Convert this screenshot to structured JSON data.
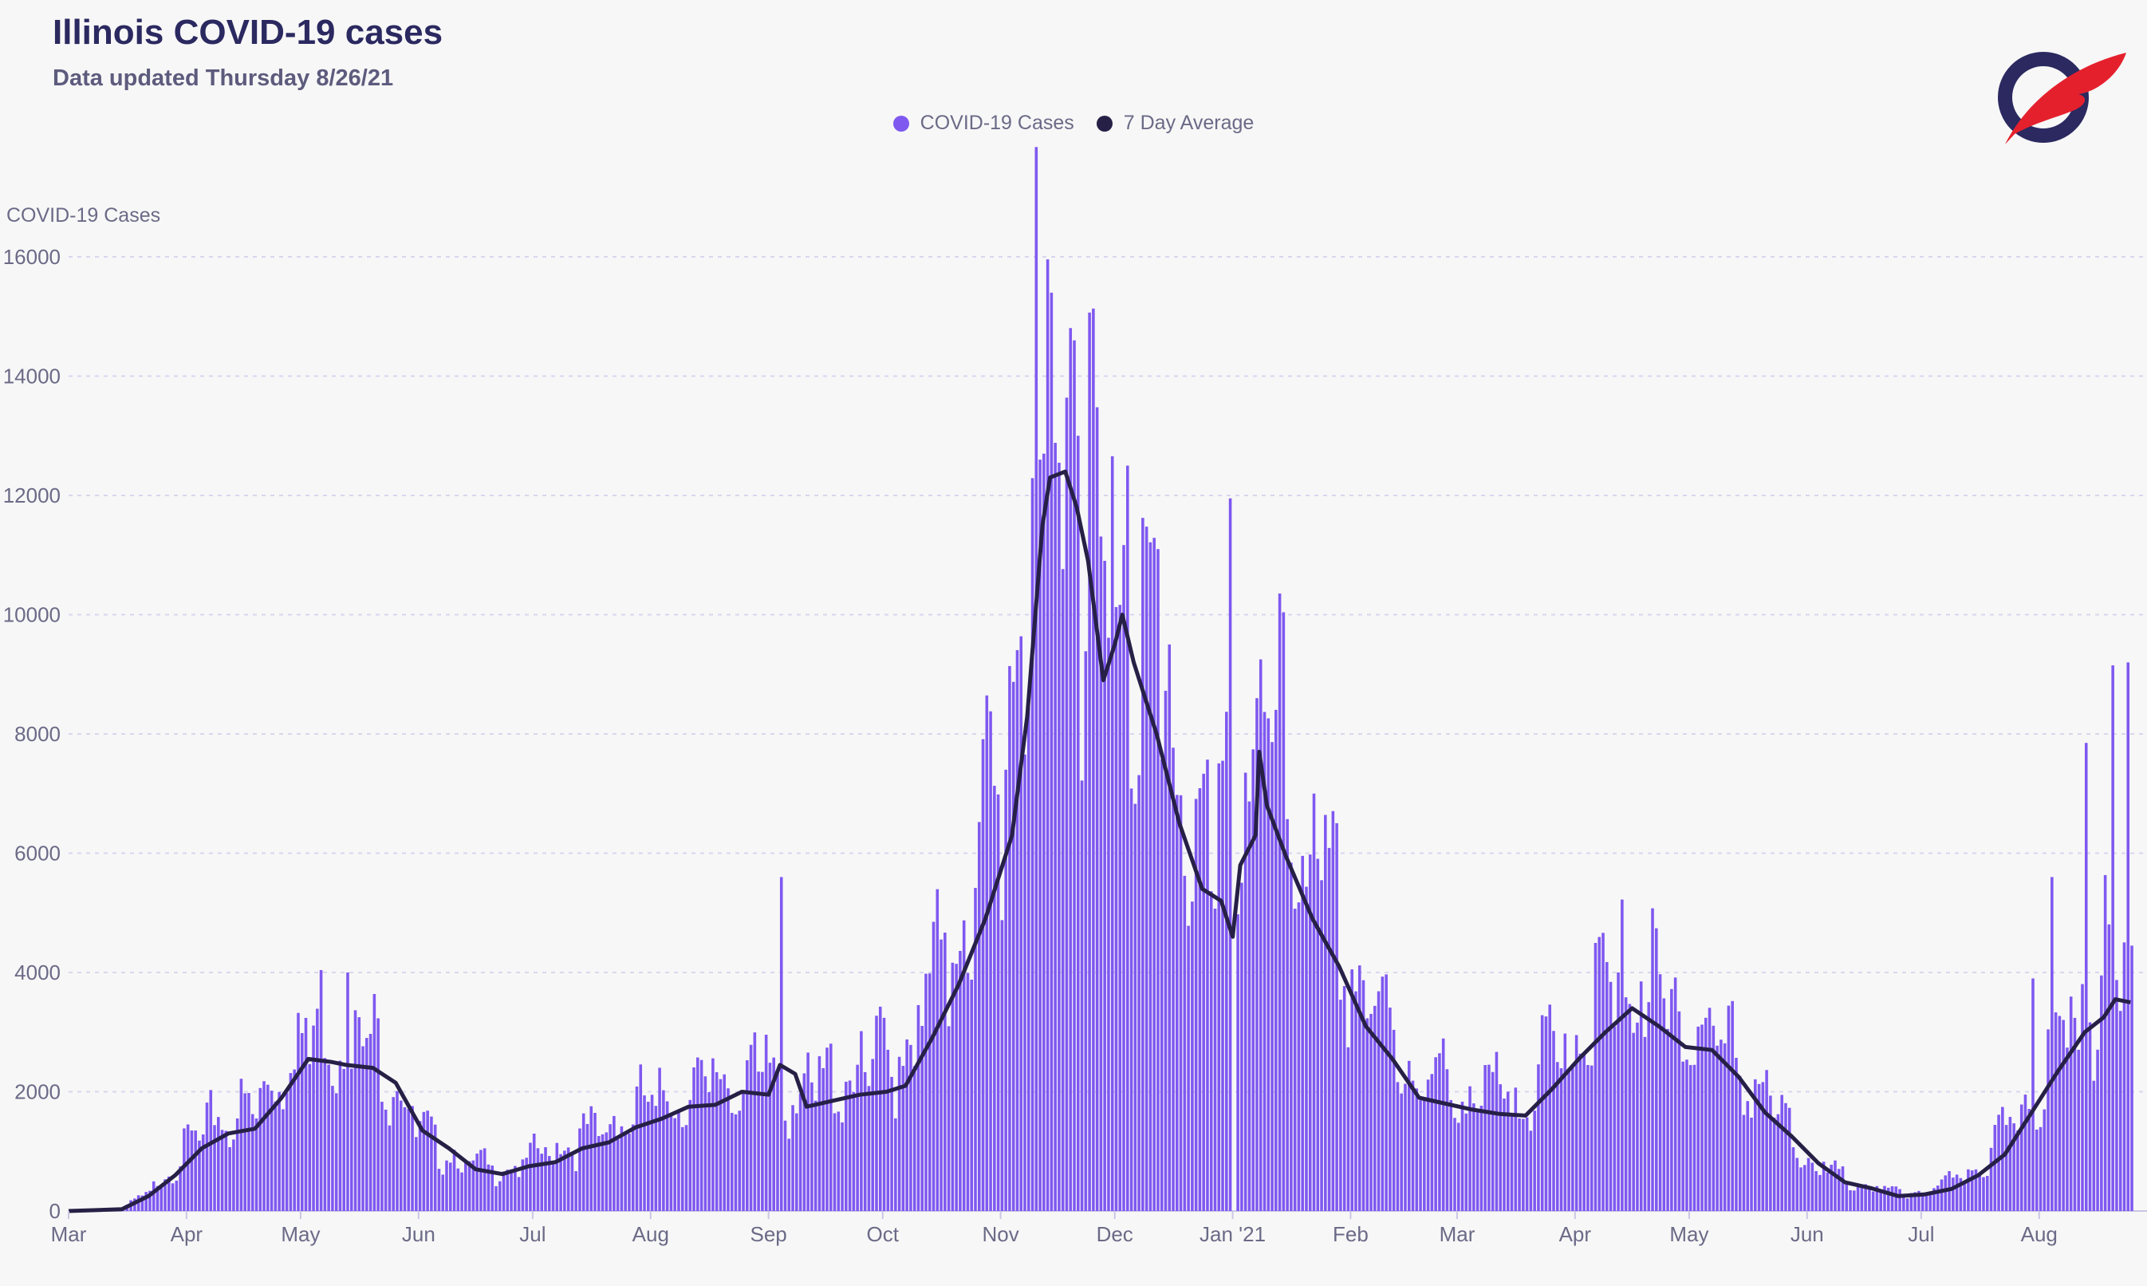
{
  "header": {
    "title": "Illinois COVID-19 cases",
    "subtitle": "Data updated Thursday 8/26/21"
  },
  "logo": {
    "icon": "quill-o-logo-icon",
    "colors": [
      "#2b2960",
      "#e5202d"
    ]
  },
  "legend": {
    "items": [
      {
        "label": "COVID-19 Cases",
        "color": "#7f58f0"
      },
      {
        "label": "7 Day Average",
        "color": "#262046"
      }
    ]
  },
  "chart_data": {
    "type": "bar",
    "ylabel": "COVID-19 Cases",
    "xlabel": "",
    "ylim": [
      0,
      16000
    ],
    "yticks": [
      "0",
      "2000",
      "4000",
      "6000",
      "8000",
      "10000",
      "12000",
      "14000",
      "16000"
    ],
    "grid": "horizontal dashed",
    "legend_position": "top-center",
    "x_range": [
      "2020-03-01",
      "2021-08-25"
    ],
    "month_ticks": [
      {
        "label": "Mar",
        "date": "2020-03-01"
      },
      {
        "label": "Apr",
        "date": "2020-04-01"
      },
      {
        "label": "May",
        "date": "2020-05-01"
      },
      {
        "label": "Jun",
        "date": "2020-06-01"
      },
      {
        "label": "Jul",
        "date": "2020-07-01"
      },
      {
        "label": "Aug",
        "date": "2020-08-01"
      },
      {
        "label": "Sep",
        "date": "2020-09-01"
      },
      {
        "label": "Oct",
        "date": "2020-10-01"
      },
      {
        "label": "Nov",
        "date": "2020-11-01"
      },
      {
        "label": "Dec",
        "date": "2020-12-01"
      },
      {
        "label": "Jan '21",
        "date": "2021-01-01"
      },
      {
        "label": "Feb",
        "date": "2021-02-01"
      },
      {
        "label": "Mar",
        "date": "2021-03-01"
      },
      {
        "label": "Apr",
        "date": "2021-04-01"
      },
      {
        "label": "May",
        "date": "2021-05-01"
      },
      {
        "label": "Jun",
        "date": "2021-06-01"
      },
      {
        "label": "Jul",
        "date": "2021-07-01"
      },
      {
        "label": "Aug",
        "date": "2021-08-01"
      }
    ],
    "series": [
      {
        "name": "COVID-19 Cases",
        "kind": "bar",
        "note": "daily new cases, one bar per day; values estimated from gridlines at anchor dates, interpolated between",
        "anchors": [
          [
            "2020-03-01",
            0
          ],
          [
            "2020-03-14",
            20
          ],
          [
            "2020-03-20",
            200
          ],
          [
            "2020-03-25",
            450
          ],
          [
            "2020-04-01",
            900
          ],
          [
            "2020-04-08",
            1300
          ],
          [
            "2020-04-15",
            1350
          ],
          [
            "2020-04-22",
            1700
          ],
          [
            "2020-04-29",
            2400
          ],
          [
            "2020-05-05",
            2600
          ],
          [
            "2020-05-12",
            2500
          ],
          [
            "2020-05-19",
            2300
          ],
          [
            "2020-05-25",
            2000
          ],
          [
            "2020-06-01",
            1100
          ],
          [
            "2020-06-08",
            850
          ],
          [
            "2020-06-15",
            650
          ],
          [
            "2020-06-22",
            600
          ],
          [
            "2020-06-29",
            700
          ],
          [
            "2020-07-06",
            900
          ],
          [
            "2020-07-13",
            1000
          ],
          [
            "2020-07-20",
            1200
          ],
          [
            "2020-07-27",
            1400
          ],
          [
            "2020-08-03",
            1600
          ],
          [
            "2020-08-10",
            1700
          ],
          [
            "2020-08-17",
            1800
          ],
          [
            "2020-08-24",
            1900
          ],
          [
            "2020-08-31",
            2000
          ],
          [
            "2020-09-06",
            1700
          ],
          [
            "2020-09-13",
            1750
          ],
          [
            "2020-09-20",
            1900
          ],
          [
            "2020-09-27",
            2000
          ],
          [
            "2020-10-04",
            2200
          ],
          [
            "2020-10-11",
            2800
          ],
          [
            "2020-10-18",
            3700
          ],
          [
            "2020-10-25",
            4700
          ],
          [
            "2020-11-01",
            6300
          ],
          [
            "2020-11-08",
            9800
          ],
          [
            "2020-11-13",
            12200
          ],
          [
            "2020-11-17",
            12000
          ],
          [
            "2020-11-21",
            11000
          ],
          [
            "2020-11-27",
            8900
          ],
          [
            "2020-12-01",
            9400
          ],
          [
            "2020-12-06",
            8700
          ],
          [
            "2020-12-13",
            7100
          ],
          [
            "2020-12-20",
            5700
          ],
          [
            "2020-12-27",
            4800
          ],
          [
            "2021-01-03",
            6200
          ],
          [
            "2021-01-08",
            6900
          ],
          [
            "2021-01-15",
            5900
          ],
          [
            "2021-01-22",
            4900
          ],
          [
            "2021-01-29",
            3800
          ],
          [
            "2021-02-05",
            3000
          ],
          [
            "2021-02-12",
            2400
          ],
          [
            "2021-02-19",
            1900
          ],
          [
            "2021-02-26",
            1750
          ],
          [
            "2021-03-05",
            1650
          ],
          [
            "2021-03-12",
            1600
          ],
          [
            "2021-03-19",
            1700
          ],
          [
            "2021-03-26",
            2200
          ],
          [
            "2021-04-02",
            2600
          ],
          [
            "2021-04-09",
            3100
          ],
          [
            "2021-04-16",
            3350
          ],
          [
            "2021-04-23",
            2900
          ],
          [
            "2021-04-30",
            2700
          ],
          [
            "2021-05-07",
            2550
          ],
          [
            "2021-05-14",
            2100
          ],
          [
            "2021-05-21",
            1600
          ],
          [
            "2021-05-28",
            1000
          ],
          [
            "2021-06-04",
            650
          ],
          [
            "2021-06-11",
            420
          ],
          [
            "2021-06-18",
            330
          ],
          [
            "2021-06-25",
            250
          ],
          [
            "2021-07-02",
            280
          ],
          [
            "2021-07-09",
            420
          ],
          [
            "2021-07-16",
            650
          ],
          [
            "2021-07-23",
            1100
          ],
          [
            "2021-07-30",
            1700
          ],
          [
            "2021-08-06",
            2400
          ],
          [
            "2021-08-13",
            3100
          ],
          [
            "2021-08-20",
            3350
          ],
          [
            "2021-08-25",
            3500
          ]
        ],
        "spikes": [
          [
            "2020-05-13",
            4000
          ],
          [
            "2020-05-16",
            3250
          ],
          [
            "2020-09-04",
            5600
          ],
          [
            "2020-11-14",
            15400
          ],
          [
            "2020-11-20",
            14600
          ],
          [
            "2020-11-21",
            13000
          ],
          [
            "2020-11-12",
            12700
          ],
          [
            "2020-11-11",
            12600
          ],
          [
            "2020-12-04",
            12500
          ],
          [
            "2020-12-12",
            11100
          ],
          [
            "2020-12-31",
            11950
          ],
          [
            "2021-01-01",
            0
          ],
          [
            "2021-01-08",
            9250
          ],
          [
            "2021-01-07",
            8600
          ],
          [
            "2021-01-22",
            7000
          ],
          [
            "2021-04-12",
            4000
          ],
          [
            "2021-04-18",
            3850
          ],
          [
            "2021-08-04",
            5600
          ],
          [
            "2021-08-13",
            7850
          ],
          [
            "2021-08-20",
            9150
          ],
          [
            "2021-08-24",
            9200
          ],
          [
            "2021-08-25",
            4450
          ],
          [
            "2021-07-30",
            3900
          ],
          [
            "2021-08-17",
            3950
          ]
        ]
      },
      {
        "name": "7 Day Average",
        "kind": "line",
        "points": [
          [
            "2020-03-01",
            0
          ],
          [
            "2020-03-15",
            30
          ],
          [
            "2020-03-22",
            250
          ],
          [
            "2020-03-29",
            600
          ],
          [
            "2020-04-05",
            1050
          ],
          [
            "2020-04-12",
            1300
          ],
          [
            "2020-04-19",
            1380
          ],
          [
            "2020-04-26",
            1900
          ],
          [
            "2020-05-03",
            2550
          ],
          [
            "2020-05-09",
            2500
          ],
          [
            "2020-05-13",
            2450
          ],
          [
            "2020-05-20",
            2400
          ],
          [
            "2020-05-26",
            2150
          ],
          [
            "2020-06-02",
            1350
          ],
          [
            "2020-06-09",
            1050
          ],
          [
            "2020-06-16",
            700
          ],
          [
            "2020-06-23",
            620
          ],
          [
            "2020-06-30",
            750
          ],
          [
            "2020-07-07",
            820
          ],
          [
            "2020-07-14",
            1050
          ],
          [
            "2020-07-21",
            1150
          ],
          [
            "2020-07-28",
            1400
          ],
          [
            "2020-08-04",
            1550
          ],
          [
            "2020-08-11",
            1750
          ],
          [
            "2020-08-18",
            1780
          ],
          [
            "2020-08-25",
            2000
          ],
          [
            "2020-09-01",
            1950
          ],
          [
            "2020-09-04",
            2450
          ],
          [
            "2020-09-08",
            2300
          ],
          [
            "2020-09-11",
            1750
          ],
          [
            "2020-09-18",
            1850
          ],
          [
            "2020-09-25",
            1950
          ],
          [
            "2020-10-02",
            2000
          ],
          [
            "2020-10-07",
            2100
          ],
          [
            "2020-10-14",
            2900
          ],
          [
            "2020-10-21",
            3800
          ],
          [
            "2020-10-28",
            4900
          ],
          [
            "2020-11-04",
            6300
          ],
          [
            "2020-11-08",
            8300
          ],
          [
            "2020-11-12",
            11500
          ],
          [
            "2020-11-14",
            12300
          ],
          [
            "2020-11-18",
            12400
          ],
          [
            "2020-11-21",
            11800
          ],
          [
            "2020-11-24",
            10900
          ],
          [
            "2020-11-28",
            8900
          ],
          [
            "2020-12-01",
            9500
          ],
          [
            "2020-12-03",
            10000
          ],
          [
            "2020-12-06",
            9200
          ],
          [
            "2020-12-12",
            8000
          ],
          [
            "2020-12-18",
            6500
          ],
          [
            "2020-12-24",
            5400
          ],
          [
            "2020-12-29",
            5200
          ],
          [
            "2021-01-01",
            4600
          ],
          [
            "2021-01-03",
            5800
          ],
          [
            "2021-01-07",
            6300
          ],
          [
            "2021-01-08",
            7700
          ],
          [
            "2021-01-10",
            6800
          ],
          [
            "2021-01-15",
            5950
          ],
          [
            "2021-01-22",
            4900
          ],
          [
            "2021-01-29",
            4100
          ],
          [
            "2021-02-05",
            3100
          ],
          [
            "2021-02-12",
            2550
          ],
          [
            "2021-02-19",
            1900
          ],
          [
            "2021-02-26",
            1800
          ],
          [
            "2021-03-05",
            1700
          ],
          [
            "2021-03-12",
            1630
          ],
          [
            "2021-03-19",
            1600
          ],
          [
            "2021-03-26",
            2050
          ],
          [
            "2021-04-02",
            2550
          ],
          [
            "2021-04-09",
            3000
          ],
          [
            "2021-04-16",
            3400
          ],
          [
            "2021-04-23",
            3100
          ],
          [
            "2021-04-30",
            2750
          ],
          [
            "2021-05-07",
            2700
          ],
          [
            "2021-05-14",
            2250
          ],
          [
            "2021-05-21",
            1650
          ],
          [
            "2021-05-28",
            1250
          ],
          [
            "2021-06-04",
            800
          ],
          [
            "2021-06-11",
            480
          ],
          [
            "2021-06-18",
            380
          ],
          [
            "2021-06-25",
            250
          ],
          [
            "2021-07-02",
            280
          ],
          [
            "2021-07-09",
            370
          ],
          [
            "2021-07-16",
            600
          ],
          [
            "2021-07-23",
            950
          ],
          [
            "2021-07-30",
            1650
          ],
          [
            "2021-08-06",
            2350
          ],
          [
            "2021-08-13",
            3000
          ],
          [
            "2021-08-18",
            3250
          ],
          [
            "2021-08-21",
            3550
          ],
          [
            "2021-08-25",
            3500
          ]
        ]
      }
    ]
  }
}
